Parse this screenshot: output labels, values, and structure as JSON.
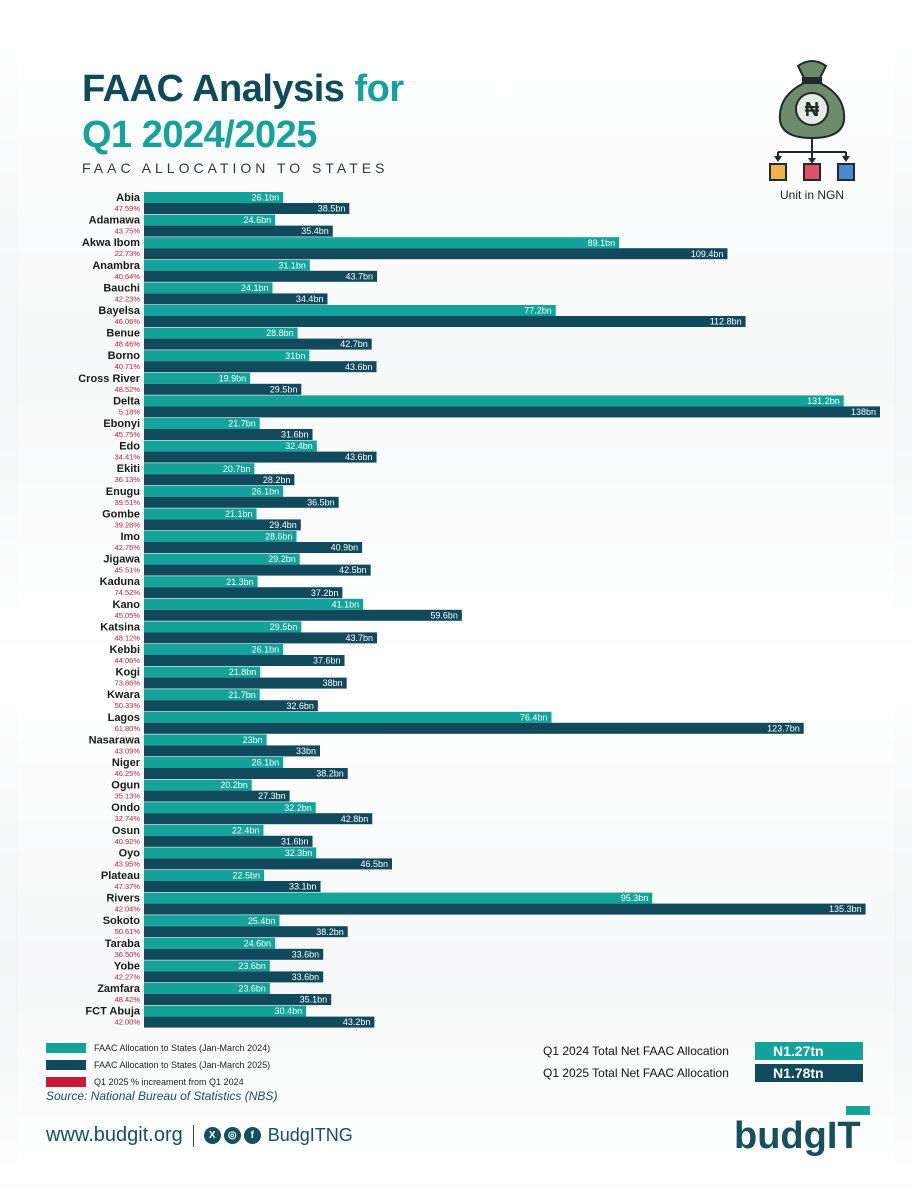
{
  "header": {
    "title_part1": "FAAC Analysis",
    "title_part2": " for",
    "title_line2": "Q1 2024/2025",
    "subtitle": "FAAC ALLOCATION TO STATES",
    "unit_label": "Unit in NGN",
    "bag_symbol": "₦"
  },
  "colors": {
    "q1_2024": "#14a39a",
    "q1_2025": "#104a5c",
    "increment": "#c8193a",
    "title_dark": "#0f4a5a",
    "title_teal": "#14a39a"
  },
  "chart_data": {
    "type": "bar",
    "orientation": "horizontal",
    "categories": [
      "Abia",
      "Adamawa",
      "Akwa Ibom",
      "Anambra",
      "Bauchi",
      "Bayelsa",
      "Benue",
      "Borno",
      "Cross River",
      "Delta",
      "Ebonyi",
      "Edo",
      "Ekiti",
      "Enugu",
      "Gombe",
      "Imo",
      "Jigawa",
      "Kaduna",
      "Kano",
      "Katsina",
      "Kebbi",
      "Kogi",
      "Kwara",
      "Lagos",
      "Nasarawa",
      "Niger",
      "Ogun",
      "Ondo",
      "Osun",
      "Oyo",
      "Plateau",
      "Rivers",
      "Sokoto",
      "Taraba",
      "Yobe",
      "Zamfara",
      "FCT Abuja"
    ],
    "series": [
      {
        "name": "FAAC Allocation to States (Jan-March 2024)",
        "values": [
          26.1,
          24.6,
          89.1,
          31.1,
          24.1,
          77.2,
          28.8,
          31,
          19.9,
          131.2,
          21.7,
          32.4,
          20.7,
          26.1,
          21.1,
          28.6,
          29.2,
          21.3,
          41.1,
          29.5,
          26.1,
          21.8,
          21.7,
          76.4,
          23,
          26.1,
          20.2,
          32.2,
          22.4,
          32.3,
          22.5,
          95.3,
          25.4,
          24.6,
          23.6,
          23.6,
          30.4
        ],
        "labels": [
          "26.1bn",
          "24.6bn",
          "89.1bn",
          "31.1bn",
          "24.1bn",
          "77.2bn",
          "28.8bn",
          "31bn",
          "19.9bn",
          "131.2bn",
          "21.7bn",
          "32.4bn",
          "20.7bn",
          "26.1bn",
          "21.1bn",
          "28.6bn",
          "29.2bn",
          "21.3bn",
          "41.1bn",
          "29.5bn",
          "26.1bn",
          "21.8bn",
          "21.7bn",
          "76.4bn",
          "23bn",
          "26.1bn",
          "20.2bn",
          "32.2bn",
          "22.4bn",
          "32.3bn",
          "22.5bn",
          "95.3bn",
          "25.4bn",
          "24.6bn",
          "23.6bn",
          "23.6bn",
          "30.4bn"
        ]
      },
      {
        "name": "FAAC Allocation to States (Jan-March 2025)",
        "values": [
          38.5,
          35.4,
          109.4,
          43.7,
          34.4,
          112.8,
          42.7,
          43.6,
          29.5,
          138,
          31.6,
          43.6,
          28.2,
          36.5,
          29.4,
          40.9,
          42.5,
          37.2,
          59.6,
          43.7,
          37.6,
          38,
          32.6,
          123.7,
          33,
          38.2,
          27.3,
          42.8,
          31.6,
          46.5,
          33.1,
          135.3,
          38.2,
          33.6,
          33.6,
          35.1,
          43.2
        ],
        "labels": [
          "38.5bn",
          "35.4bn",
          "109.4bn",
          "43.7bn",
          "34.4bn",
          "112.8bn",
          "42.7bn",
          "43.6bn",
          "29.5bn",
          "138bn",
          "31.6bn",
          "43.6bn",
          "28.2bn",
          "36.5bn",
          "29.4bn",
          "40.9bn",
          "42.5bn",
          "37.2bn",
          "59.6bn",
          "43.7bn",
          "37.6bn",
          "38bn",
          "32.6bn",
          "123.7bn",
          "33bn",
          "38.2bn",
          "27.3bn",
          "42.8bn",
          "31.6bn",
          "46.5bn",
          "33.1bn",
          "135.3bn",
          "38.2bn",
          "33.6bn",
          "33.6bn",
          "35.1bn",
          "43.2bn"
        ]
      }
    ],
    "increments": [
      "47.59%",
      "43.75%",
      "22.73%",
      "40.64%",
      "42.23%",
      "46.06%",
      "48.46%",
      "40.71%",
      "48.52%",
      "5.18%",
      "45.75%",
      "34.41%",
      "36.13%",
      "39.51%",
      "39.28%",
      "42.76%",
      "45.51%",
      "74.52%",
      "45.05%",
      "48.12%",
      "44.06%",
      "73.86%",
      "50.33%",
      "61.80%",
      "43.09%",
      "46.25%",
      "35.13%",
      "32.74%",
      "40.92%",
      "43.95%",
      "47.37%",
      "42.04%",
      "50.61%",
      "36.50%",
      "42.27%",
      "48.42%",
      "42.00%"
    ],
    "xlim": [
      0,
      138
    ],
    "grid": false,
    "legend_position": "bottom-left"
  },
  "legend": [
    {
      "label": "FAAC Allocation to States (Jan-March 2024)",
      "color": "#14a39a"
    },
    {
      "label": "FAAC Allocation to States (Jan-March 2025)",
      "color": "#104a5c"
    },
    {
      "label": "Q1 2025 % increament from Q1 2024",
      "color": "#c8193a"
    }
  ],
  "totals": [
    {
      "label": "Q1 2024 Total Net FAAC Allocation",
      "value": "N1.27tn",
      "color": "#14a39a"
    },
    {
      "label": "Q1 2025 Total Net FAAC Allocation",
      "value": "N1.78tn",
      "color": "#104a5c"
    }
  ],
  "source": "Source: National Bureau of Statistics (NBS)",
  "footer": {
    "url": "www.budgit.org",
    "handle": "BudgITNG",
    "social_icons": [
      "x-icon",
      "instagram-icon",
      "facebook-icon"
    ],
    "logo_text": "budgIT"
  }
}
